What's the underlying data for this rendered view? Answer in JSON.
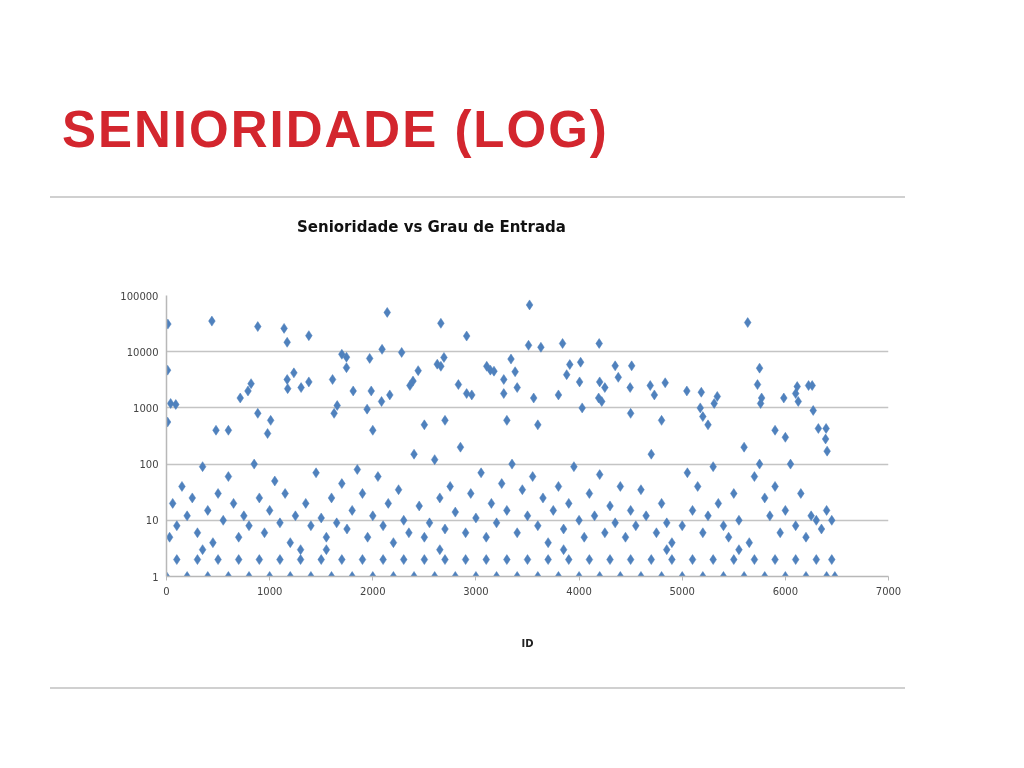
{
  "chart_data": {
    "type": "scatter",
    "title": "SENIORIDADE (LOG)",
    "subtitle": "Senioridade vs Grau de Entrada",
    "xlabel": "ID",
    "xlim": [
      0,
      7000
    ],
    "xticks": [
      0,
      1000,
      2000,
      3000,
      4000,
      5000,
      6000,
      7000
    ],
    "ylim": [
      1,
      100000
    ],
    "yticks": [
      1,
      10,
      100,
      1000,
      10000,
      100000
    ],
    "log": "y",
    "grid": "y",
    "marker": "diamond",
    "color": "#4f81bd",
    "x": [
      13,
      10,
      40,
      90,
      10,
      440,
      885,
      1140,
      1170,
      1380,
      715,
      790,
      820,
      1170,
      1175,
      1235,
      1305,
      1380,
      1610,
      1655,
      1700,
      1745,
      1745,
      1810,
      1970,
      1985,
      2090,
      2140,
      2085,
      2165,
      1945,
      1625,
      885,
      1010,
      3520,
      2660,
      2910,
      2280,
      3510,
      3630,
      3840,
      4195,
      2690,
      2625,
      2660,
      2440,
      2390,
      2360,
      2830,
      2910,
      2960,
      3105,
      3140,
      3175,
      3340,
      3380,
      3270,
      3400,
      3270,
      3560,
      3910,
      3880,
      4015,
      4005,
      4200,
      4250,
      4190,
      4220,
      4350,
      4380,
      4510,
      4495,
      3800,
      4030,
      5635,
      5750,
      5730,
      5770,
      5760,
      4690,
      4835,
      4730,
      5045,
      5185,
      5175,
      5340,
      5310,
      5200,
      5985,
      6115,
      6100,
      6125,
      6225,
      6260,
      6270,
      6320,
      6395,
      6390,
      6405,
      480,
      600,
      980,
      2000,
      2500,
      2700,
      3300,
      3600,
      4500,
      4800,
      5250,
      5900,
      6000,
      350,
      1550,
      2650,
      3850,
      4850,
      5550,
      30,
      60,
      100,
      150,
      200,
      250,
      300,
      350,
      400,
      450,
      500,
      550,
      600,
      650,
      700,
      750,
      800,
      850,
      900,
      950,
      1000,
      1050,
      1100,
      1150,
      1200,
      1250,
      1300,
      1350,
      1400,
      1450,
      1500,
      1550,
      1600,
      1650,
      1700,
      1750,
      1800,
      1850,
      1900,
      1950,
      2000,
      2050,
      2100,
      2150,
      2200,
      2250,
      2300,
      2350,
      2400,
      2450,
      2500,
      2550,
      2600,
      2650,
      2700,
      2750,
      2800,
      2850,
      2900,
      2950,
      3000,
      3050,
      3100,
      3150,
      3200,
      3250,
      3300,
      3350,
      3400,
      3450,
      3500,
      3550,
      3600,
      3650,
      3700,
      3750,
      3800,
      3850,
      3900,
      3950,
      4000,
      4050,
      4100,
      4150,
      4200,
      4250,
      4300,
      4350,
      4400,
      4450,
      4500,
      4550,
      4600,
      4650,
      4700,
      4750,
      4800,
      4850,
      4900,
      5000,
      5050,
      5100,
      5150,
      5200,
      5250,
      5300,
      5350,
      5400,
      5450,
      5500,
      5550,
      5600,
      5650,
      5700,
      5750,
      5800,
      5850,
      5900,
      5950,
      6000,
      6050,
      6100,
      6150,
      6200,
      6250,
      6300,
      6350,
      6400,
      6450,
      0,
      200,
      400,
      600,
      800,
      1000,
      1200,
      1400,
      1600,
      1800,
      2000,
      2200,
      2400,
      2600,
      2800,
      3000,
      3200,
      3400,
      3600,
      3800,
      4000,
      4200,
      4400,
      4600,
      4800,
      5000,
      5200,
      5400,
      5600,
      5800,
      6000,
      6200,
      6400,
      6480,
      100,
      300,
      500,
      700,
      900,
      1100,
      1300,
      1500,
      1700,
      1900,
      2100,
      2300,
      2500,
      2700,
      2900,
      3100,
      3300,
      3500,
      3700,
      3900,
      4100,
      4300,
      4500,
      4700,
      4900,
      5100,
      5300,
      5500,
      5700,
      5900,
      6100,
      6300,
      6450
    ],
    "values": [
      31000,
      4700,
      1200,
      1150,
      560,
      35000,
      28000,
      26000,
      14700,
      19300,
      1500,
      2000,
      2700,
      3200,
      2200,
      4200,
      2300,
      2900,
      3200,
      1100,
      9000,
      8000,
      5200,
      2000,
      7600,
      2000,
      11000,
      50000,
      1300,
      1700,
      950,
      800,
      800,
      600,
      68000,
      32000,
      19000,
      9700,
      13000,
      12000,
      14000,
      14000,
      7900,
      6000,
      5500,
      4600,
      3000,
      2500,
      2600,
      1800,
      1700,
      5500,
      4700,
      4500,
      7400,
      4400,
      3200,
      2300,
      1800,
      1500,
      5900,
      3900,
      6500,
      2900,
      2900,
      2300,
      1500,
      1300,
      5600,
      3500,
      5600,
      2300,
      1700,
      1000,
      33000,
      5100,
      2600,
      1500,
      1200,
      2500,
      2800,
      1700,
      2000,
      1900,
      1000,
      1600,
      1200,
      700,
      1500,
      2400,
      1800,
      1300,
      2500,
      2500,
      900,
      430,
      430,
      280,
      170,
      400,
      400,
      350,
      400,
      500,
      600,
      600,
      500,
      800,
      600,
      500,
      400,
      300,
      3,
      3,
      3,
      3,
      3,
      3,
      5,
      20,
      8,
      40,
      12,
      25,
      6,
      90,
      15,
      4,
      30,
      10,
      60,
      20,
      5,
      12,
      8,
      100,
      25,
      6,
      15,
      50,
      9,
      30,
      4,
      12,
      3,
      20,
      8,
      70,
      11,
      5,
      25,
      9,
      45,
      7,
      15,
      80,
      30,
      5,
      12,
      60,
      8,
      20,
      4,
      35,
      10,
      6,
      150,
      18,
      5,
      9,
      120,
      25,
      7,
      40,
      14,
      200,
      6,
      30,
      11,
      70,
      5,
      20,
      9,
      45,
      15,
      100,
      6,
      35,
      12,
      60,
      8,
      25,
      4,
      15,
      40,
      7,
      20,
      90,
      10,
      5,
      30,
      12,
      65,
      6,
      18,
      9,
      40,
      5,
      15,
      8,
      35,
      12,
      150,
      6,
      20,
      9,
      4,
      8,
      70,
      15,
      40,
      6,
      12,
      90,
      20,
      8,
      5,
      30,
      10,
      200,
      4,
      60,
      100,
      25,
      12,
      40,
      6,
      15,
      100,
      8,
      30,
      5,
      12,
      10,
      7,
      15,
      10,
      1,
      1,
      1,
      1,
      1,
      1,
      1,
      1,
      1,
      1,
      1,
      1,
      1,
      1,
      1,
      1,
      1,
      1,
      1,
      1,
      1,
      1,
      1,
      1,
      1,
      1,
      1,
      1,
      1,
      1,
      1,
      1,
      1,
      1,
      2,
      2,
      2,
      2,
      2,
      2,
      2,
      2,
      2,
      2,
      2,
      2,
      2,
      2,
      2,
      2,
      2,
      2,
      2,
      2,
      2,
      2,
      2,
      2,
      2,
      2,
      2,
      2,
      2,
      2,
      2,
      2,
      2
    ]
  }
}
